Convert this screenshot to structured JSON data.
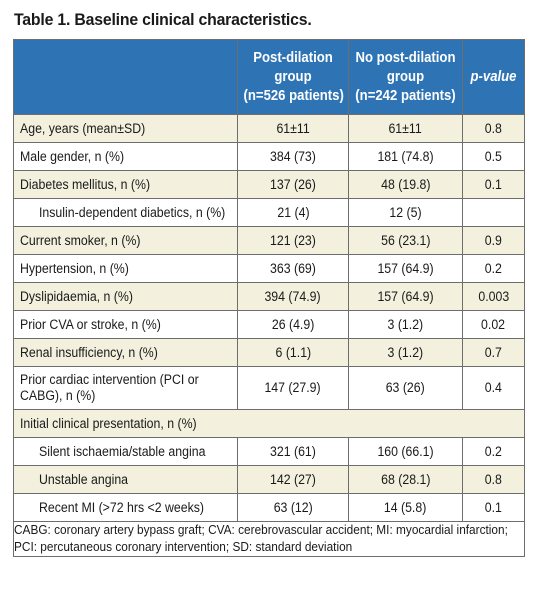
{
  "title": "Table 1. Baseline clinical characteristics.",
  "columns": {
    "post_dilation": [
      "Post-dilation",
      "group",
      "(n=526 patients)"
    ],
    "no_post_dilation": [
      "No post-dilation",
      "group",
      "(n=242 patients)"
    ],
    "p_value": "p-value"
  },
  "rows": [
    {
      "label": "Age, years (mean±SD)",
      "post": "61±11",
      "nopost": "61±11",
      "p": "0.8"
    },
    {
      "label": "Male gender, n (%)",
      "post": "384 (73)",
      "nopost": "181 (74.8)",
      "p": "0.5"
    },
    {
      "label": "Diabetes mellitus, n (%)",
      "post": "137 (26)",
      "nopost": "48 (19.8)",
      "p": "0.1"
    },
    {
      "label": "Insulin-dependent diabetics, n (%)",
      "post": "21 (4)",
      "nopost": "12 (5)",
      "p": ""
    },
    {
      "label": "Current smoker, n (%)",
      "post": "121 (23)",
      "nopost": "56 (23.1)",
      "p": "0.9"
    },
    {
      "label": "Hypertension, n (%)",
      "post": "363 (69)",
      "nopost": "157 (64.9)",
      "p": "0.2"
    },
    {
      "label": "Dyslipidaemia, n (%)",
      "post": "394 (74.9)",
      "nopost": "157 (64.9)",
      "p": "0.003"
    },
    {
      "label": "Prior CVA or stroke, n (%)",
      "post": "26 (4.9)",
      "nopost": "3 (1.2)",
      "p": "0.02"
    },
    {
      "label": "Renal insufficiency, n (%)",
      "post": "6 (1.1)",
      "nopost": "3 (1.2)",
      "p": "0.7"
    },
    {
      "label": "Prior cardiac intervention (PCI or CABG), n (%)",
      "post": "147 (27.9)",
      "nopost": "63 (26)",
      "p": "0.4"
    },
    {
      "label": "Initial clinical presentation, n (%)",
      "post": "",
      "nopost": "",
      "p": ""
    },
    {
      "label": "Silent ischaemia/stable angina",
      "post": "321 (61)",
      "nopost": "160 (66.1)",
      "p": "0.2"
    },
    {
      "label": "Unstable angina",
      "post": "142 (27)",
      "nopost": "68 (28.1)",
      "p": "0.8"
    },
    {
      "label": "Recent MI (>72 hrs <2 weeks)",
      "post": "63 (12)",
      "nopost": "14 (5.8)",
      "p": "0.1"
    }
  ],
  "footnote": "CABG: coronary artery bypass graft; CVA: cerebrovascular accident; MI: myocardial infarction; PCI: percutaneous coronary intervention; SD: standard deviation",
  "colors": {
    "header_bg": "#2e74b5",
    "beige_row": "#f3f0de",
    "border": "#6d6d6d"
  }
}
